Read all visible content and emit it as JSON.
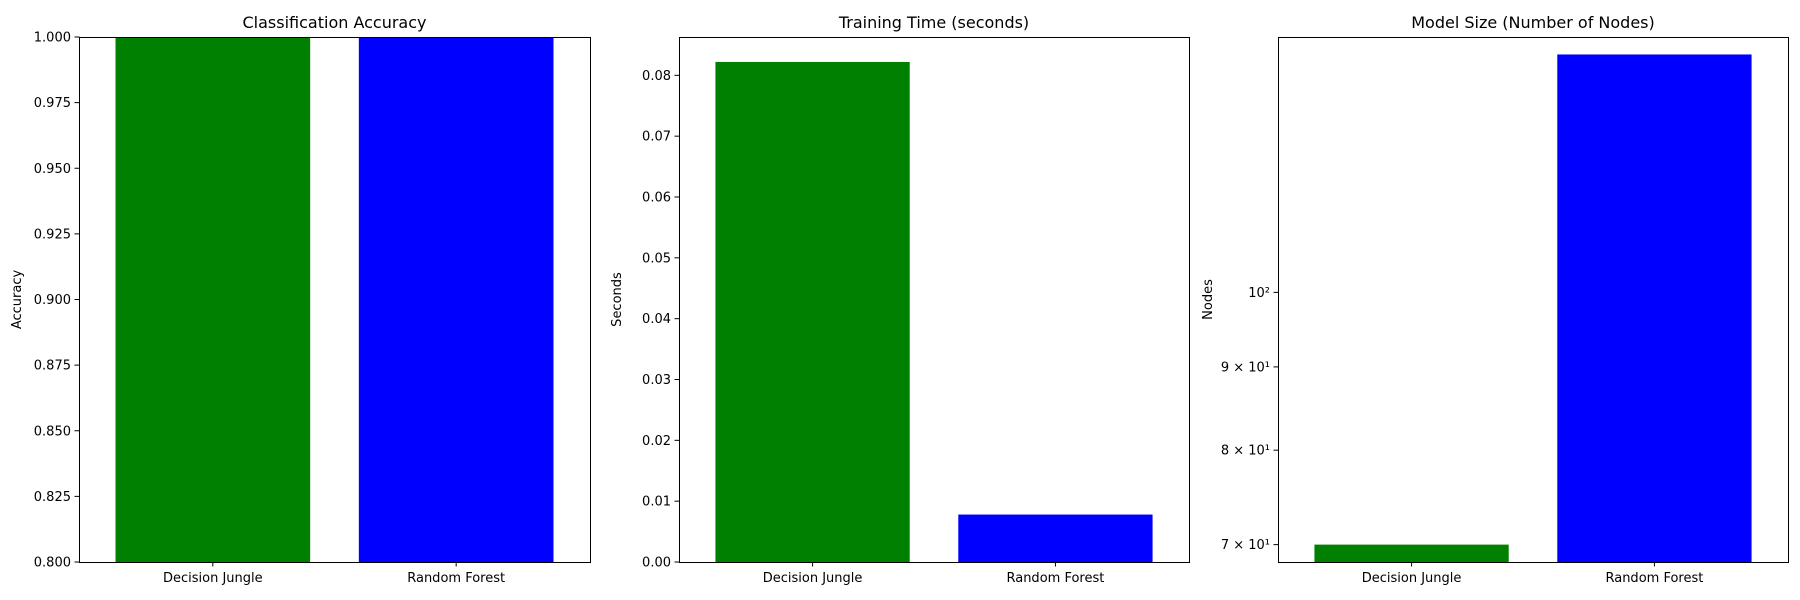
{
  "chart_data": [
    {
      "type": "bar",
      "title": "Classification Accuracy",
      "xlabel": "",
      "ylabel": "Accuracy",
      "categories": [
        "Decision Jungle",
        "Random Forest"
      ],
      "values": [
        1.0,
        1.0
      ],
      "colors": [
        "#008000",
        "#0000ff"
      ],
      "ylim": [
        0.8,
        1.0
      ],
      "yscale": "linear",
      "yticks": [
        {
          "value": 0.8,
          "label": "0.800"
        },
        {
          "value": 0.825,
          "label": "0.825"
        },
        {
          "value": 0.85,
          "label": "0.850"
        },
        {
          "value": 0.875,
          "label": "0.875"
        },
        {
          "value": 0.9,
          "label": "0.900"
        },
        {
          "value": 0.925,
          "label": "0.925"
        },
        {
          "value": 0.95,
          "label": "0.950"
        },
        {
          "value": 0.975,
          "label": "0.975"
        },
        {
          "value": 1.0,
          "label": "1.000"
        }
      ],
      "grid": false
    },
    {
      "type": "bar",
      "title": "Training Time (seconds)",
      "xlabel": "",
      "ylabel": "Seconds",
      "categories": [
        "Decision Jungle",
        "Random Forest"
      ],
      "values": [
        0.0822,
        0.0078
      ],
      "colors": [
        "#008000",
        "#0000ff"
      ],
      "ylim": [
        0,
        0.0863
      ],
      "yscale": "linear",
      "yticks": [
        {
          "value": 0.0,
          "label": "0.00"
        },
        {
          "value": 0.01,
          "label": "0.01"
        },
        {
          "value": 0.02,
          "label": "0.02"
        },
        {
          "value": 0.03,
          "label": "0.03"
        },
        {
          "value": 0.04,
          "label": "0.04"
        },
        {
          "value": 0.05,
          "label": "0.05"
        },
        {
          "value": 0.06,
          "label": "0.06"
        },
        {
          "value": 0.07,
          "label": "0.07"
        },
        {
          "value": 0.08,
          "label": "0.08"
        }
      ],
      "grid": false
    },
    {
      "type": "bar",
      "title": "Model Size (Number of Nodes)",
      "xlabel": "",
      "ylabel": "Nodes",
      "categories": [
        "Decision Jungle",
        "Random Forest"
      ],
      "values": [
        70,
        140
      ],
      "colors": [
        "#008000",
        "#0000ff"
      ],
      "ylim": [
        68.3,
        143.5
      ],
      "yscale": "log",
      "yticks": [
        {
          "value": 70,
          "label": "7 × 10¹"
        },
        {
          "value": 80,
          "label": "8 × 10¹"
        },
        {
          "value": 90,
          "label": "9 × 10¹"
        },
        {
          "value": 100,
          "label": "10²"
        }
      ],
      "grid": false
    }
  ]
}
